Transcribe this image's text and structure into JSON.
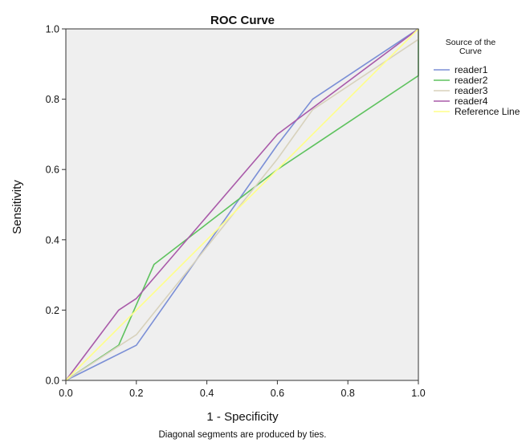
{
  "chart_data": {
    "type": "line",
    "title": "ROC Curve",
    "xlabel": "1 - Specificity",
    "ylabel": "Sensitivity",
    "footnote": "Diagonal segments are produced by ties.",
    "xlim": [
      0.0,
      1.0
    ],
    "ylim": [
      0.0,
      1.0
    ],
    "x_ticks": [
      "0.0",
      "0.2",
      "0.4",
      "0.6",
      "0.8",
      "1.0"
    ],
    "y_ticks": [
      "0.0",
      "0.2",
      "0.4",
      "0.6",
      "0.8",
      "1.0"
    ],
    "grid": false,
    "legend": {
      "title": [
        "Source of the",
        "Curve"
      ],
      "position": "right"
    },
    "series": [
      {
        "name": "reader1",
        "color": "#7b8fd6",
        "points": [
          [
            0.0,
            0.0
          ],
          [
            0.2,
            0.1
          ],
          [
            0.6,
            0.67
          ],
          [
            0.7,
            0.8
          ],
          [
            1.0,
            1.0
          ]
        ]
      },
      {
        "name": "reader2",
        "color": "#5ec25e",
        "points": [
          [
            0.0,
            0.0
          ],
          [
            0.15,
            0.1
          ],
          [
            0.25,
            0.33
          ],
          [
            0.6,
            0.6
          ],
          [
            1.0,
            0.867
          ],
          [
            1.0,
            1.0
          ]
        ]
      },
      {
        "name": "reader3",
        "color": "#d8d2bc",
        "points": [
          [
            0.0,
            0.0
          ],
          [
            0.2,
            0.13
          ],
          [
            0.6,
            0.63
          ],
          [
            0.7,
            0.77
          ],
          [
            1.0,
            0.97
          ],
          [
            1.0,
            1.0
          ]
        ]
      },
      {
        "name": "reader4",
        "color": "#a95aa9",
        "points": [
          [
            0.0,
            0.0
          ],
          [
            0.15,
            0.2
          ],
          [
            0.2,
            0.233
          ],
          [
            0.6,
            0.7
          ],
          [
            1.0,
            1.0
          ]
        ]
      },
      {
        "name": "Reference Line",
        "color": "#ffff88",
        "points": [
          [
            0.0,
            0.0
          ],
          [
            1.0,
            1.0
          ]
        ]
      }
    ]
  }
}
